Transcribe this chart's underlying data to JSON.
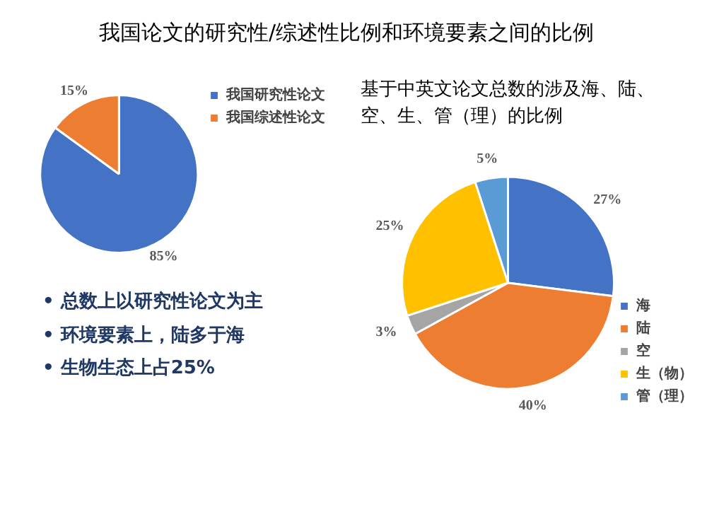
{
  "chart_data": [
    {
      "type": "pie",
      "title": "我国论文的研究性/综述性比例和环境要素之间的比例",
      "categories": [
        "我国研究性论文",
        "我国综述性论文"
      ],
      "values": [
        85,
        15
      ],
      "value_labels": [
        "85%",
        "15%"
      ],
      "colors": [
        "#4472c4",
        "#ed7d31"
      ],
      "legend": "top right",
      "annotations": [
        "• 总数上以研究性论文为主",
        "• 环境要素上，陆多于海",
        "• 生物生态上占25%"
      ]
    },
    {
      "type": "pie",
      "title": "基于中英文论文总数的涉及海、陆、空、生、管（理）的比例",
      "categories": [
        "海",
        "陆",
        "空",
        "生（物）",
        "管（理）"
      ],
      "values": [
        27,
        40,
        3,
        25,
        5
      ],
      "value_labels": [
        "27%",
        "40%",
        "3%",
        "25%",
        "5%"
      ],
      "colors": [
        "#4472c4",
        "#ed7d31",
        "#a5a5a5",
        "#ffc000",
        "#5b9bd5"
      ],
      "legend": "bottom right"
    }
  ]
}
